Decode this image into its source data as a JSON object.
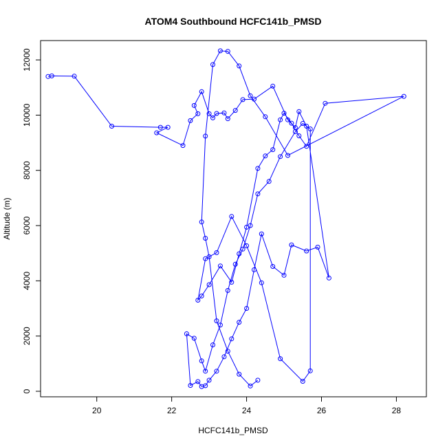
{
  "chart_data": {
    "type": "scatter",
    "title": "ATOM4 Southbound HCFC141b_PMSD",
    "xlabel": "HCFC141b_PMSD",
    "ylabel": "Altitude (m)",
    "xlim": [
      18.5,
      28.8
    ],
    "ylim": [
      -200,
      12700
    ],
    "xticks": [
      20,
      22,
      24,
      26,
      28
    ],
    "yticks": [
      0,
      2000,
      4000,
      6000,
      8000,
      10000,
      12000
    ],
    "grid": false,
    "legend": "none",
    "color": "#0000ff",
    "series": [
      {
        "x": [
          18.7,
          18.8,
          19.4,
          20.4,
          21.7,
          21.9,
          21.6,
          22.3,
          22.5,
          22.7,
          22.6,
          22.8,
          23.0,
          23.1,
          23.2,
          23.4,
          23.5,
          23.7,
          23.9,
          24.2,
          24.7,
          25.1,
          25.3,
          25.4,
          25.6,
          26.2,
          25.9,
          25.6,
          25.2,
          25.0,
          24.7,
          24.4,
          24.2,
          24.0,
          23.8,
          23.6,
          23.4,
          23.2,
          23.0,
          22.9,
          22.8,
          22.7,
          22.5,
          22.4,
          22.6,
          22.8,
          22.9,
          23.1,
          23.3,
          23.5,
          23.7,
          23.9,
          24.1,
          24.3,
          24.6,
          24.9,
          25.3,
          25.5,
          25.7,
          25.7,
          25.5,
          24.9,
          24.4,
          24.0,
          23.6,
          23.2,
          22.9,
          22.7,
          22.8,
          23.0,
          23.3,
          23.6,
          23.8,
          24.0,
          24.3,
          24.5,
          24.7,
          24.9,
          25.0,
          25.2,
          25.4,
          25.6,
          26.1,
          28.2,
          25.1,
          24.5,
          24.1,
          23.8,
          23.5,
          23.3,
          23.1,
          22.9,
          22.8,
          22.9,
          23.0,
          23.2,
          23.5,
          23.8,
          24.1,
          24.3
        ],
        "y": [
          11400,
          11420,
          11410,
          9600,
          9560,
          9560,
          9360,
          8900,
          9800,
          10050,
          10350,
          10850,
          10050,
          9900,
          10060,
          10080,
          9870,
          10170,
          10560,
          10580,
          11050,
          9830,
          9550,
          10130,
          9600,
          4100,
          5220,
          5080,
          5300,
          4200,
          4520,
          5700,
          4400,
          3000,
          2500,
          1900,
          1250,
          730,
          400,
          200,
          170,
          350,
          210,
          2080,
          1920,
          1100,
          730,
          1680,
          2400,
          3650,
          4600,
          5150,
          6000,
          7150,
          7600,
          8500,
          9400,
          9700,
          9500,
          740,
          360,
          1180,
          3930,
          5270,
          6330,
          5020,
          4800,
          3300,
          3450,
          3860,
          4540,
          3950,
          4980,
          5940,
          8070,
          8520,
          8750,
          9830,
          10070,
          9710,
          9250,
          8870,
          10430,
          10680,
          8540,
          9940,
          10700,
          11780,
          12310,
          12330,
          11830,
          9240,
          6130,
          5540,
          4870,
          2550,
          1450,
          620,
          190,
          400
        ]
      }
    ]
  }
}
